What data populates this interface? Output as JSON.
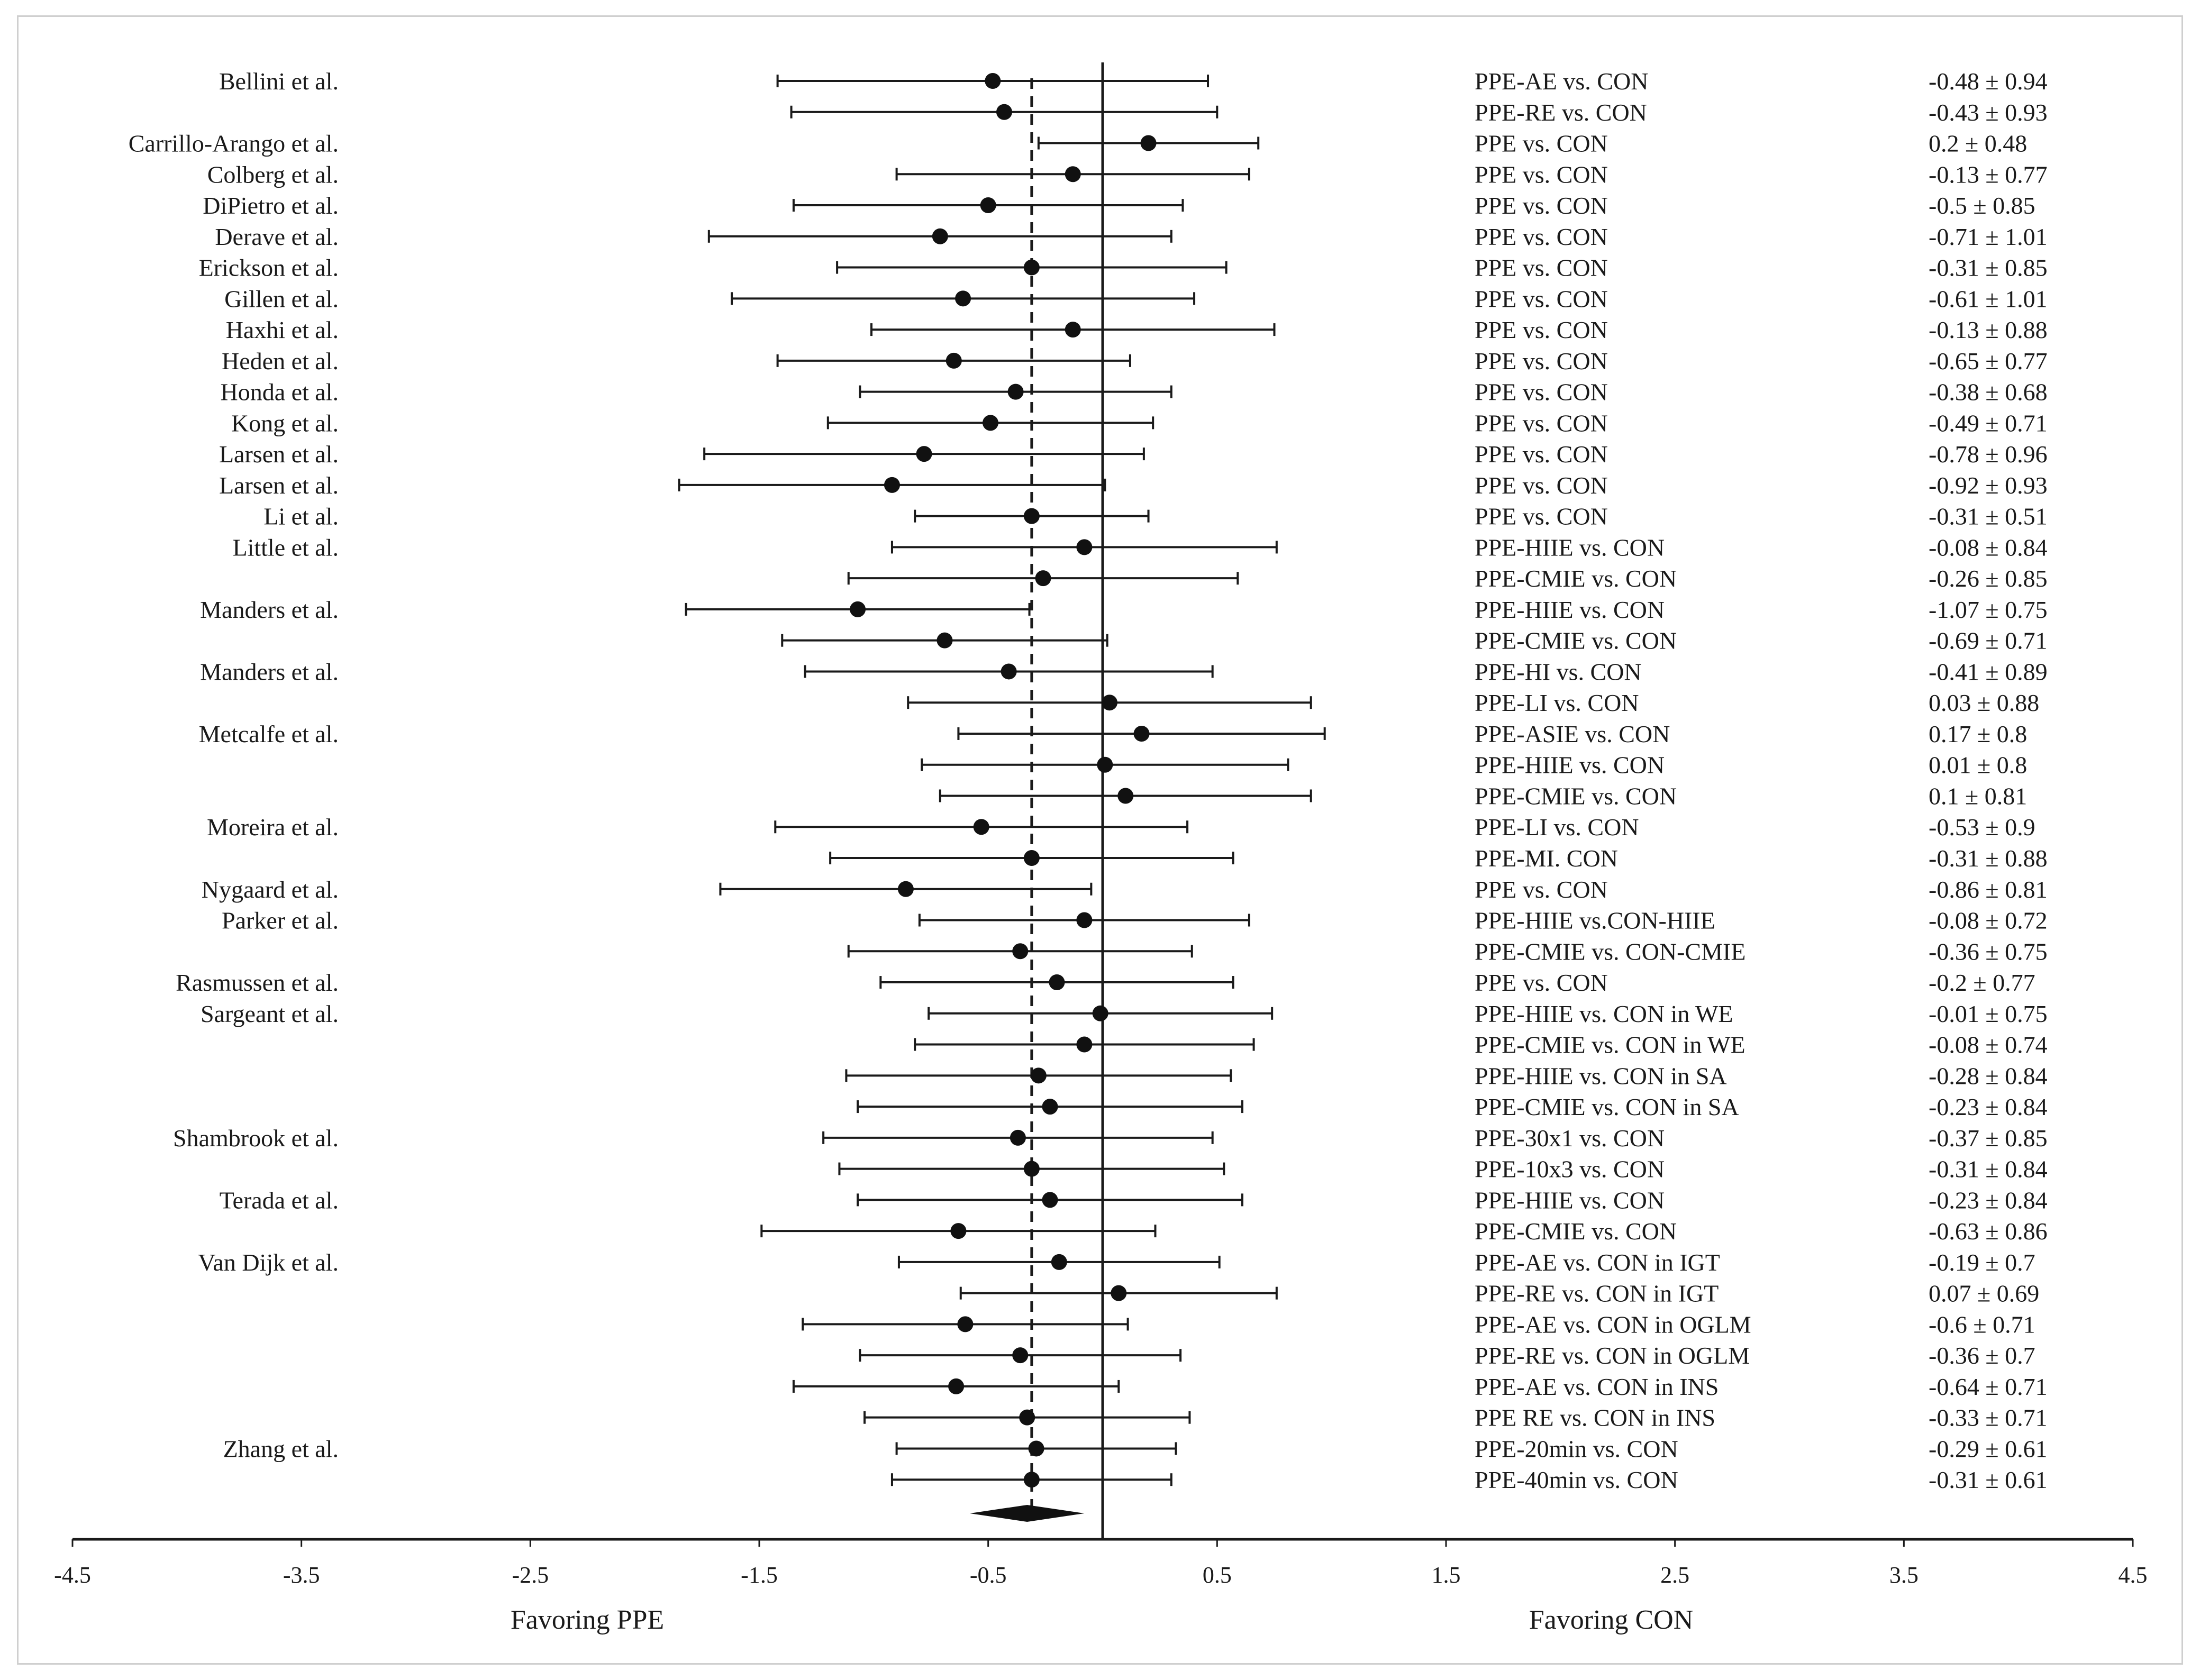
{
  "chart_data": {
    "type": "forest",
    "xlim": [
      -4.5,
      4.5
    ],
    "x_ticks": [
      "-4.5",
      "-3.5",
      "-2.5",
      "-1.5",
      "-0.5",
      "0.5",
      "1.5",
      "2.5",
      "3.5",
      "4.5"
    ],
    "x_tick_values": [
      -4.5,
      -3.5,
      -2.5,
      -1.5,
      -0.5,
      0.5,
      1.5,
      2.5,
      3.5,
      4.5
    ],
    "left_axis_label": "Favoring PPE",
    "right_axis_label": "Favoring CON",
    "reference_line": 0,
    "pooled_line": -0.31,
    "pooled_diamond": {
      "estimate": -0.33,
      "lower": -0.58,
      "upper": -0.08
    },
    "rows": [
      {
        "study": "Bellini et al.",
        "comparison": "PPE-AE vs. CON",
        "effect": "-0.48 ± 0.94",
        "mean": -0.48,
        "lower": -1.42,
        "upper": 0.46
      },
      {
        "study": "",
        "comparison": "PPE-RE vs. CON",
        "effect": "-0.43 ± 0.93",
        "mean": -0.43,
        "lower": -1.36,
        "upper": 0.5
      },
      {
        "study": "Carrillo-Arango et al.",
        "comparison": "PPE vs. CON",
        "effect": "0.2 ± 0.48",
        "mean": 0.2,
        "lower": -0.28,
        "upper": 0.68
      },
      {
        "study": "Colberg et al.",
        "comparison": "PPE vs. CON",
        "effect": "-0.13 ± 0.77",
        "mean": -0.13,
        "lower": -0.9,
        "upper": 0.64
      },
      {
        "study": "DiPietro et al.",
        "comparison": "PPE vs. CON",
        "effect": "-0.5 ± 0.85",
        "mean": -0.5,
        "lower": -1.35,
        "upper": 0.35
      },
      {
        "study": "Derave et al.",
        "comparison": "PPE vs. CON",
        "effect": "-0.71 ± 1.01",
        "mean": -0.71,
        "lower": -1.72,
        "upper": 0.3
      },
      {
        "study": "Erickson et al.",
        "comparison": "PPE vs. CON",
        "effect": "-0.31 ± 0.85",
        "mean": -0.31,
        "lower": -1.16,
        "upper": 0.54
      },
      {
        "study": "Gillen et al.",
        "comparison": "PPE vs. CON",
        "effect": "-0.61 ± 1.01",
        "mean": -0.61,
        "lower": -1.62,
        "upper": 0.4
      },
      {
        "study": "Haxhi et al.",
        "comparison": "PPE vs. CON",
        "effect": "-0.13 ± 0.88",
        "mean": -0.13,
        "lower": -1.01,
        "upper": 0.75
      },
      {
        "study": "Heden et al.",
        "comparison": "PPE vs. CON",
        "effect": "-0.65 ± 0.77",
        "mean": -0.65,
        "lower": -1.42,
        "upper": 0.12
      },
      {
        "study": "Honda et al.",
        "comparison": "PPE vs. CON",
        "effect": "-0.38 ± 0.68",
        "mean": -0.38,
        "lower": -1.06,
        "upper": 0.3
      },
      {
        "study": "Kong et al.",
        "comparison": "PPE vs. CON",
        "effect": "-0.49 ± 0.71",
        "mean": -0.49,
        "lower": -1.2,
        "upper": 0.22
      },
      {
        "study": "Larsen et al.",
        "comparison": "PPE vs. CON",
        "effect": "-0.78 ± 0.96",
        "mean": -0.78,
        "lower": -1.74,
        "upper": 0.18
      },
      {
        "study": "Larsen et al.",
        "comparison": "PPE vs. CON",
        "effect": "-0.92 ± 0.93",
        "mean": -0.92,
        "lower": -1.85,
        "upper": 0.01
      },
      {
        "study": "Li et al.",
        "comparison": "PPE vs. CON",
        "effect": "-0.31 ± 0.51",
        "mean": -0.31,
        "lower": -0.82,
        "upper": 0.2
      },
      {
        "study": "Little et al.",
        "comparison": "PPE-HIIE vs. CON",
        "effect": "-0.08 ± 0.84",
        "mean": -0.08,
        "lower": -0.92,
        "upper": 0.76
      },
      {
        "study": "",
        "comparison": "PPE-CMIE vs. CON",
        "effect": "-0.26 ± 0.85",
        "mean": -0.26,
        "lower": -1.11,
        "upper": 0.59
      },
      {
        "study": "Manders et al.",
        "comparison": "PPE-HIIE vs. CON",
        "effect": "-1.07 ± 0.75",
        "mean": -1.07,
        "lower": -1.82,
        "upper": -0.32
      },
      {
        "study": "",
        "comparison": "PPE-CMIE vs. CON",
        "effect": "-0.69 ± 0.71",
        "mean": -0.69,
        "lower": -1.4,
        "upper": 0.02
      },
      {
        "study": "Manders et al.",
        "comparison": "PPE-HI vs. CON",
        "effect": "-0.41 ± 0.89",
        "mean": -0.41,
        "lower": -1.3,
        "upper": 0.48
      },
      {
        "study": "",
        "comparison": "PPE-LI vs. CON",
        "effect": "0.03 ± 0.88",
        "mean": 0.03,
        "lower": -0.85,
        "upper": 0.91
      },
      {
        "study": "Metcalfe et al.",
        "comparison": "PPE-ASIE vs. CON",
        "effect": "0.17 ± 0.8",
        "mean": 0.17,
        "lower": -0.63,
        "upper": 0.97
      },
      {
        "study": "",
        "comparison": "PPE-HIIE vs. CON",
        "effect": "0.01 ± 0.8",
        "mean": 0.01,
        "lower": -0.79,
        "upper": 0.81
      },
      {
        "study": "",
        "comparison": "PPE-CMIE vs. CON",
        "effect": "0.1 ± 0.81",
        "mean": 0.1,
        "lower": -0.71,
        "upper": 0.91
      },
      {
        "study": "Moreira et al.",
        "comparison": "PPE-LI vs. CON",
        "effect": "-0.53 ± 0.9",
        "mean": -0.53,
        "lower": -1.43,
        "upper": 0.37
      },
      {
        "study": "",
        "comparison": "PPE-MI. CON",
        "effect": "-0.31 ± 0.88",
        "mean": -0.31,
        "lower": -1.19,
        "upper": 0.57
      },
      {
        "study": "Nygaard et al.",
        "comparison": "PPE vs. CON",
        "effect": "-0.86 ± 0.81",
        "mean": -0.86,
        "lower": -1.67,
        "upper": -0.05
      },
      {
        "study": "Parker et al.",
        "comparison": "PPE-HIIE vs.CON-HIIE",
        "effect": "-0.08 ± 0.72",
        "mean": -0.08,
        "lower": -0.8,
        "upper": 0.64
      },
      {
        "study": "",
        "comparison": "PPE-CMIE vs. CON-CMIE",
        "effect": "-0.36 ± 0.75",
        "mean": -0.36,
        "lower": -1.11,
        "upper": 0.39
      },
      {
        "study": "Rasmussen et al.",
        "comparison": "PPE vs. CON",
        "effect": "-0.2 ± 0.77",
        "mean": -0.2,
        "lower": -0.97,
        "upper": 0.57
      },
      {
        "study": "Sargeant et al.",
        "comparison": "PPE-HIIE vs. CON in WE",
        "effect": "-0.01 ± 0.75",
        "mean": -0.01,
        "lower": -0.76,
        "upper": 0.74
      },
      {
        "study": "",
        "comparison": "PPE-CMIE vs. CON in WE",
        "effect": "-0.08 ± 0.74",
        "mean": -0.08,
        "lower": -0.82,
        "upper": 0.66
      },
      {
        "study": "",
        "comparison": "PPE-HIIE vs. CON in SA",
        "effect": "-0.28 ± 0.84",
        "mean": -0.28,
        "lower": -1.12,
        "upper": 0.56
      },
      {
        "study": "",
        "comparison": "PPE-CMIE vs. CON in SA",
        "effect": "-0.23 ± 0.84",
        "mean": -0.23,
        "lower": -1.07,
        "upper": 0.61
      },
      {
        "study": "Shambrook et al.",
        "comparison": "PPE-30x1 vs. CON",
        "effect": "-0.37 ± 0.85",
        "mean": -0.37,
        "lower": -1.22,
        "upper": 0.48
      },
      {
        "study": "",
        "comparison": "PPE-10x3 vs. CON",
        "effect": "-0.31 ± 0.84",
        "mean": -0.31,
        "lower": -1.15,
        "upper": 0.53
      },
      {
        "study": "Terada et al.",
        "comparison": "PPE-HIIE vs. CON",
        "effect": "-0.23 ± 0.84",
        "mean": -0.23,
        "lower": -1.07,
        "upper": 0.61
      },
      {
        "study": "",
        "comparison": "PPE-CMIE vs. CON",
        "effect": "-0.63 ± 0.86",
        "mean": -0.63,
        "lower": -1.49,
        "upper": 0.23
      },
      {
        "study": "Van Dijk et al.",
        "comparison": "PPE-AE vs. CON in IGT",
        "effect": "-0.19 ± 0.7",
        "mean": -0.19,
        "lower": -0.89,
        "upper": 0.51
      },
      {
        "study": "",
        "comparison": "PPE-RE vs. CON in IGT",
        "effect": "0.07 ± 0.69",
        "mean": 0.07,
        "lower": -0.62,
        "upper": 0.76
      },
      {
        "study": "",
        "comparison": "PPE-AE vs. CON in OGLM",
        "effect": "-0.6 ± 0.71",
        "mean": -0.6,
        "lower": -1.31,
        "upper": 0.11
      },
      {
        "study": "",
        "comparison": "PPE-RE vs. CON in OGLM",
        "effect": "-0.36 ± 0.7",
        "mean": -0.36,
        "lower": -1.06,
        "upper": 0.34
      },
      {
        "study": "",
        "comparison": "PPE-AE vs. CON in INS",
        "effect": "-0.64 ± 0.71",
        "mean": -0.64,
        "lower": -1.35,
        "upper": 0.07
      },
      {
        "study": "",
        "comparison": "PPE RE vs. CON in INS",
        "effect": "-0.33 ± 0.71",
        "mean": -0.33,
        "lower": -1.04,
        "upper": 0.38
      },
      {
        "study": "Zhang et al.",
        "comparison": "PPE-20min vs. CON",
        "effect": "-0.29 ± 0.61",
        "mean": -0.29,
        "lower": -0.9,
        "upper": 0.32
      },
      {
        "study": "",
        "comparison": "PPE-40min vs. CON",
        "effect": "-0.31 ± 0.61",
        "mean": -0.31,
        "lower": -0.92,
        "upper": 0.3
      }
    ]
  }
}
